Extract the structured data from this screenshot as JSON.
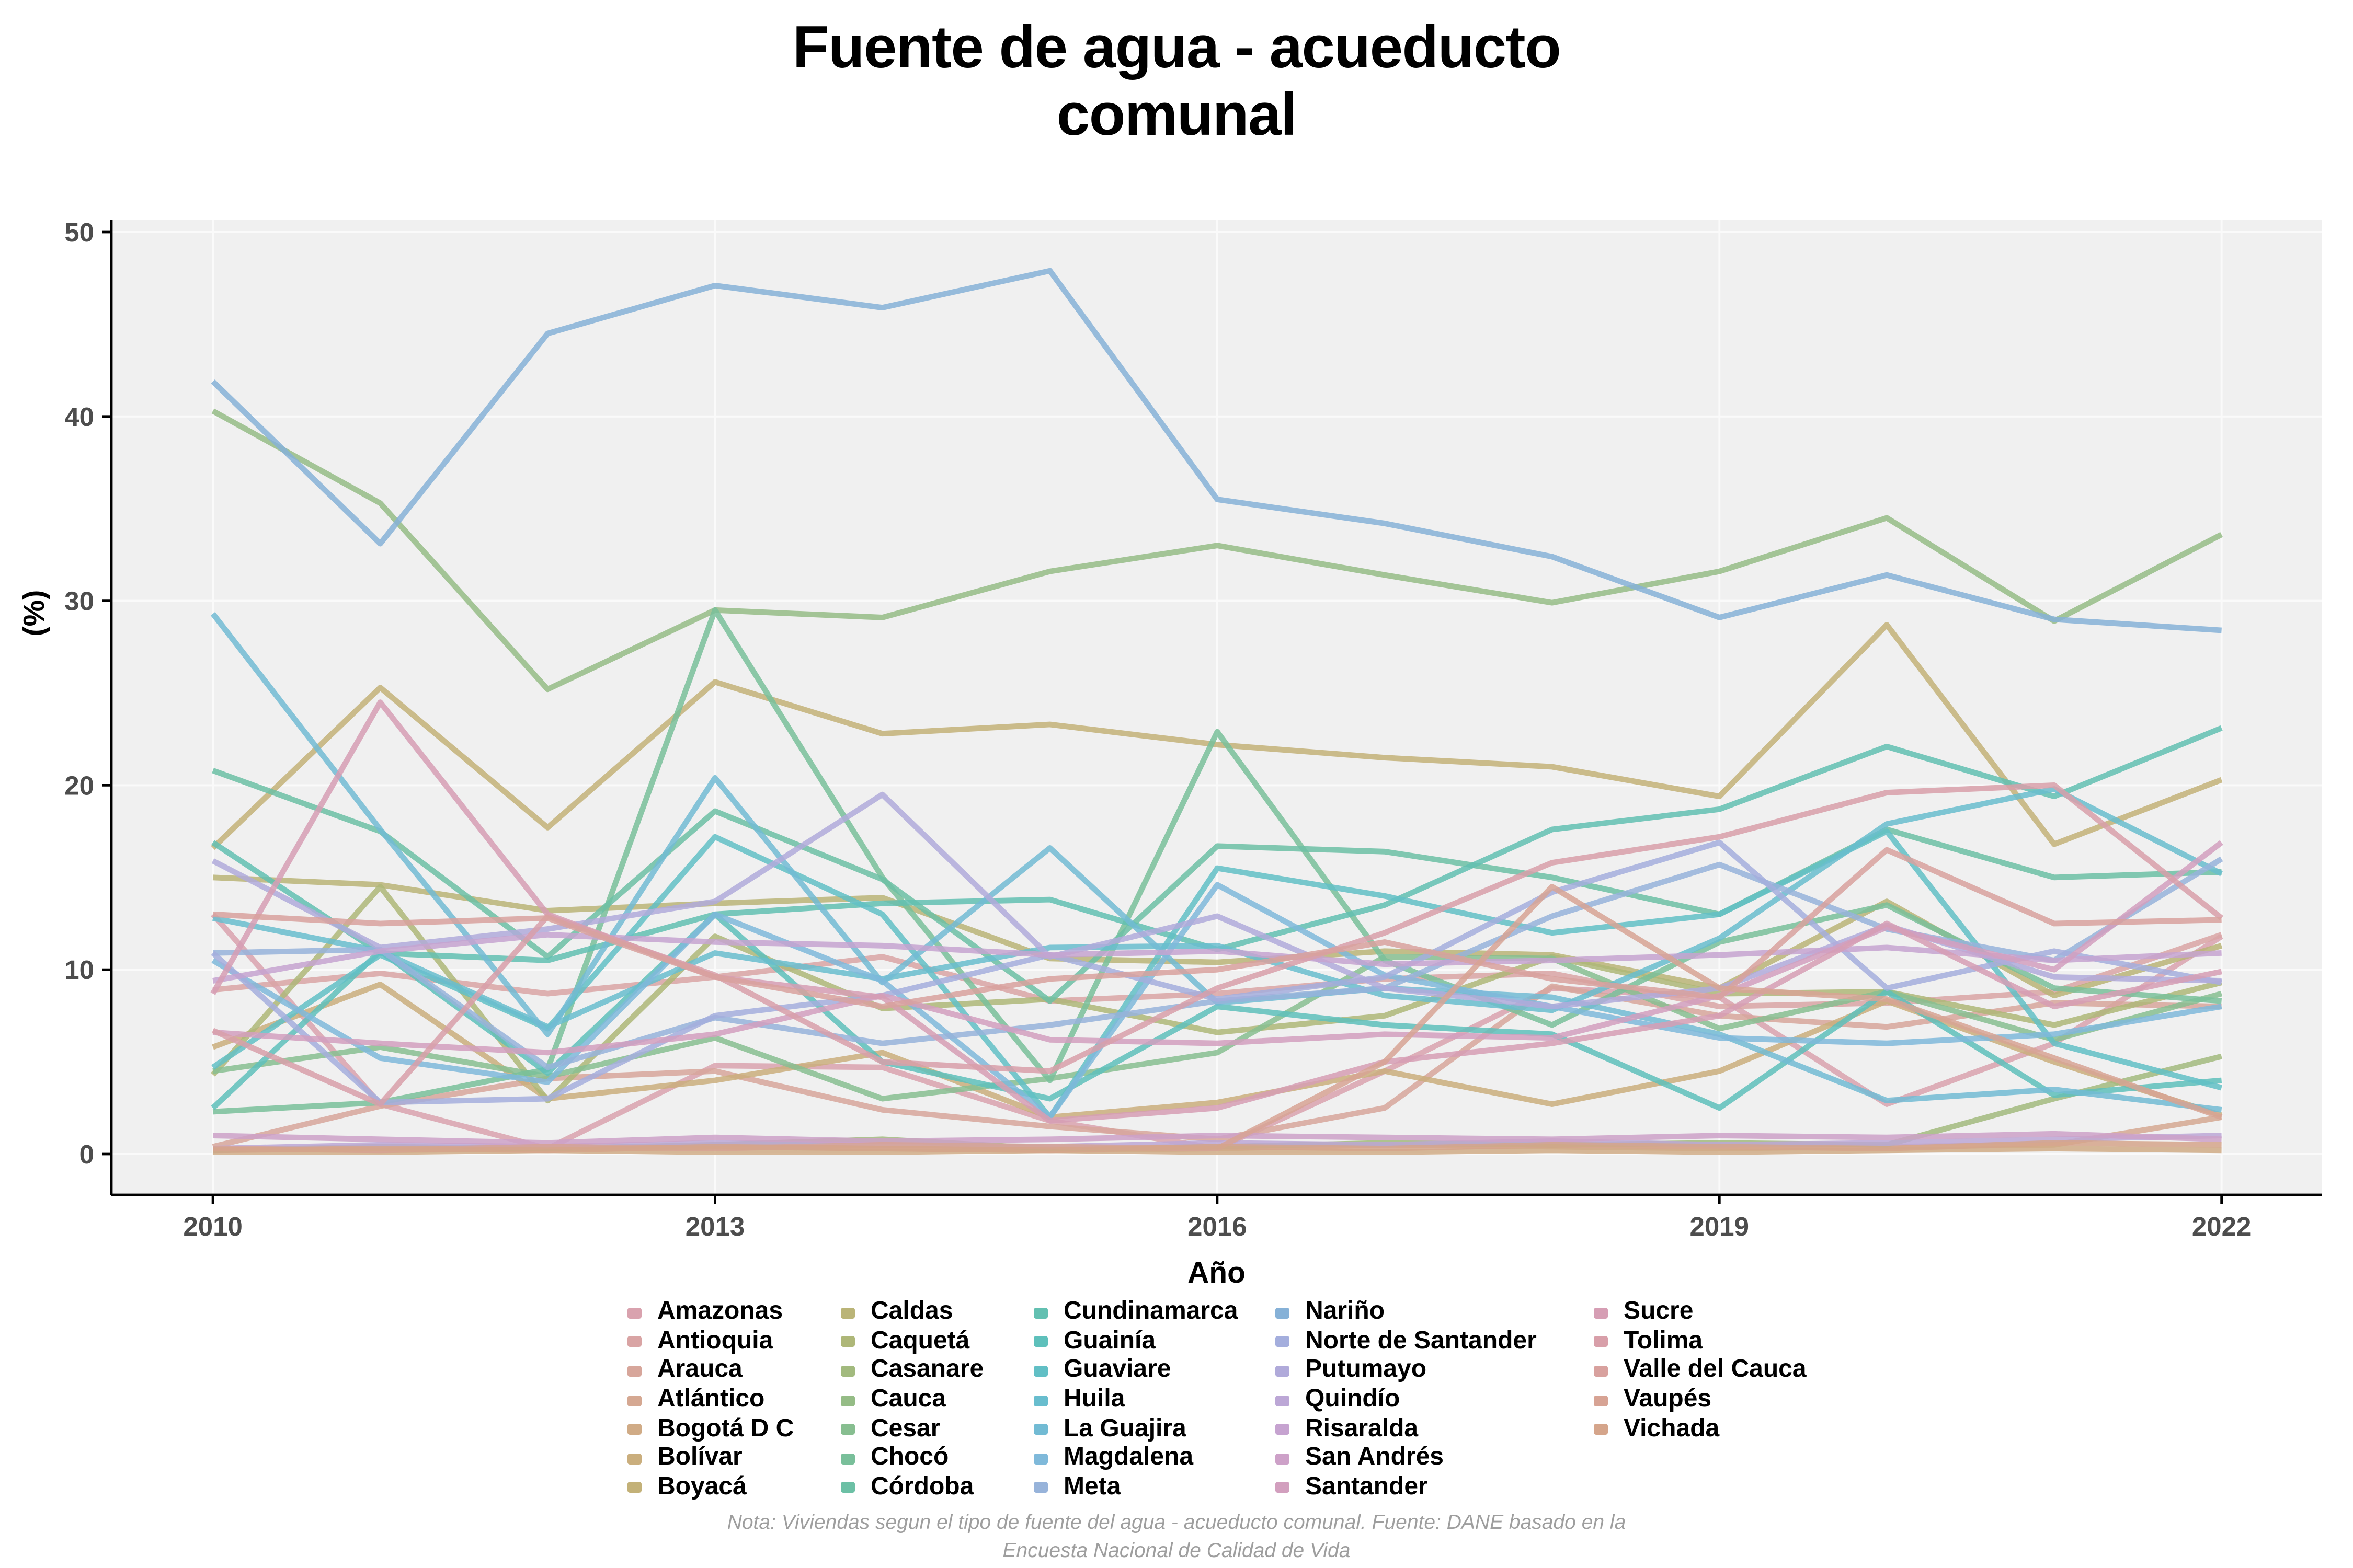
{
  "title": "Fuente de agua - acueducto comunal",
  "note": "Nota: Viviendas segun el tipo de fuente del agua - acueducto comunal. Fuente: DANE basado en la Encuesta Nacional de Calidad de Vida",
  "axes": {
    "x_label": "Año",
    "y_label": "(%)",
    "x_ticks": [
      2010,
      2013,
      2016,
      2019,
      2022
    ],
    "y_ticks": [
      0,
      10,
      20,
      30,
      40,
      50
    ]
  },
  "style_colors": {
    "panel_bg": "#f0f0f0",
    "gridline": "#fafafa",
    "axis_line": "#000000",
    "tick_label": "#4d4d4d",
    "note_text": "#9e9e9e"
  },
  "chart_data": {
    "type": "line",
    "title": "Fuente de agua - acueducto comunal",
    "xlabel": "Año",
    "ylabel": "(%)",
    "ylim": [
      0,
      50
    ],
    "xlim": [
      2010,
      2022
    ],
    "grid": "major horizontal and vertical, white on light gray panel",
    "legend_position": "bottom",
    "x": [
      2010,
      2011,
      2012,
      2013,
      2014,
      2015,
      2016,
      2017,
      2018,
      2019,
      2020,
      2021,
      2022
    ],
    "series": [
      {
        "name": "Amazonas",
        "color": "#d9a2ae",
        "values": [
          13.0,
          2.7,
          0.3,
          4.8,
          4.7,
          1.8,
          0.3,
          4.5,
          9.0,
          8.5,
          2.7,
          6.0,
          11.8
        ]
      },
      {
        "name": "Antioquia",
        "color": "#d9a4a4",
        "values": [
          8.9,
          9.8,
          8.7,
          9.6,
          10.7,
          8.3,
          8.7,
          9.5,
          9.8,
          8.0,
          8.2,
          8.8,
          11.9
        ]
      },
      {
        "name": "Arauca",
        "color": "#d7a69b",
        "values": [
          0.4,
          2.6,
          4.1,
          4.5,
          2.4,
          1.5,
          0.8,
          2.5,
          9.1,
          7.5,
          6.9,
          8.2,
          8.0
        ]
      },
      {
        "name": "Atlántico",
        "color": "#d5a892",
        "values": [
          0.3,
          0.2,
          0.3,
          0.4,
          0.3,
          0.2,
          0.3,
          0.5,
          0.4,
          0.3,
          0.4,
          0.5,
          2.0
        ]
      },
      {
        "name": "Bogotá D C",
        "color": "#d0ab86",
        "values": [
          0.1,
          0.1,
          0.2,
          0.1,
          0.1,
          0.2,
          0.1,
          0.1,
          0.2,
          0.1,
          0.2,
          0.3,
          0.2
        ]
      },
      {
        "name": "Bolívar",
        "color": "#caae7d",
        "values": [
          5.8,
          9.2,
          3.0,
          4.0,
          5.5,
          2.0,
          2.8,
          4.5,
          2.7,
          4.5,
          8.3,
          5.0,
          2.1
        ]
      },
      {
        "name": "Boyacá",
        "color": "#c3b178",
        "values": [
          16.6,
          25.3,
          17.7,
          25.6,
          22.8,
          23.3,
          22.2,
          21.5,
          21.0,
          19.4,
          28.7,
          16.8,
          20.3
        ]
      },
      {
        "name": "Caldas",
        "color": "#bab477",
        "values": [
          15.0,
          14.6,
          13.2,
          13.6,
          13.9,
          10.6,
          10.4,
          11.0,
          10.8,
          9.0,
          13.7,
          8.6,
          11.3
        ]
      },
      {
        "name": "Caquetá",
        "color": "#aeb778",
        "values": [
          4.3,
          14.5,
          2.9,
          11.8,
          7.9,
          8.4,
          6.6,
          7.5,
          10.7,
          8.7,
          8.8,
          7.0,
          9.3
        ]
      },
      {
        "name": "Casanare",
        "color": "#a2ba7e",
        "values": [
          0.2,
          0.4,
          0.3,
          0.5,
          0.8,
          0.3,
          0.4,
          0.6,
          0.5,
          0.6,
          0.5,
          3.0,
          5.3
        ]
      },
      {
        "name": "Cauca",
        "color": "#95bc86",
        "values": [
          40.3,
          35.3,
          25.2,
          29.5,
          29.1,
          31.6,
          33.0,
          31.4,
          29.9,
          31.6,
          34.5,
          28.9,
          33.6
        ]
      },
      {
        "name": "Cesar",
        "color": "#87be90",
        "values": [
          4.5,
          5.8,
          4.2,
          6.3,
          3.0,
          4.1,
          5.5,
          10.7,
          10.6,
          6.8,
          8.8,
          6.2,
          8.7
        ]
      },
      {
        "name": "Chocó",
        "color": "#79bf9a",
        "values": [
          2.3,
          2.8,
          4.6,
          29.5,
          15.0,
          4.0,
          22.9,
          10.5,
          7.0,
          11.5,
          13.5,
          9.0,
          8.3
        ]
      },
      {
        "name": "Córdoba",
        "color": "#6cc0a5",
        "values": [
          20.8,
          17.5,
          10.7,
          18.6,
          14.9,
          8.3,
          16.7,
          16.4,
          15.0,
          13.0,
          17.6,
          15.0,
          15.3
        ]
      },
      {
        "name": "Cundinamarca",
        "color": "#62c0b1",
        "values": [
          16.9,
          10.9,
          10.5,
          13.0,
          13.6,
          13.8,
          11.1,
          13.5,
          17.6,
          18.7,
          22.1,
          19.4,
          23.1
        ]
      },
      {
        "name": "Guainía",
        "color": "#5ec0bb",
        "values": [
          2.5,
          11.0,
          4.4,
          13.0,
          5.0,
          3.0,
          8.0,
          7.0,
          6.5,
          2.5,
          8.8,
          3.2,
          4.0
        ]
      },
      {
        "name": "Guaviare",
        "color": "#61bfc5",
        "values": [
          4.7,
          10.8,
          6.8,
          17.2,
          13.0,
          2.0,
          15.5,
          14.0,
          12.0,
          13.0,
          17.5,
          6.0,
          3.6
        ]
      },
      {
        "name": "Huila",
        "color": "#68bdce",
        "values": [
          12.8,
          11.0,
          6.9,
          10.9,
          9.5,
          11.2,
          11.3,
          8.6,
          7.8,
          11.7,
          17.9,
          19.8,
          15.2
        ]
      },
      {
        "name": "La Guajira",
        "color": "#72bbd4",
        "values": [
          29.3,
          17.6,
          6.5,
          20.4,
          9.3,
          16.6,
          8.2,
          9.0,
          8.5,
          6.5,
          2.9,
          3.5,
          2.4
        ]
      },
      {
        "name": "Magdalena",
        "color": "#7fb9da",
        "values": [
          10.5,
          5.2,
          3.9,
          13.0,
          9.4,
          2.0,
          14.6,
          9.7,
          8.0,
          6.3,
          6.0,
          6.5,
          8.0
        ]
      },
      {
        "name": "Meta",
        "color": "#97b3da",
        "values": [
          10.9,
          11.1,
          4.7,
          7.4,
          6.0,
          7.0,
          8.3,
          9.0,
          12.9,
          15.7,
          12.2,
          10.5,
          16.0
        ]
      },
      {
        "name": "Nariño",
        "color": "#86b1d7",
        "values": [
          41.9,
          33.1,
          44.5,
          47.1,
          45.9,
          47.9,
          35.5,
          34.2,
          32.4,
          29.1,
          31.4,
          29.0,
          28.4
        ]
      },
      {
        "name": "Norte de Santander",
        "color": "#a4aedd",
        "values": [
          10.9,
          2.8,
          3.0,
          7.5,
          8.6,
          10.8,
          8.4,
          9.6,
          14.2,
          16.9,
          9.0,
          11.0,
          9.3
        ]
      },
      {
        "name": "Putumayo",
        "color": "#b0aada",
        "values": [
          15.9,
          11.2,
          12.2,
          13.7,
          19.5,
          10.7,
          12.9,
          9.0,
          8.0,
          9.0,
          12.4,
          9.6,
          9.4
        ]
      },
      {
        "name": "Quindío",
        "color": "#bca7d6",
        "values": [
          0.3,
          0.5,
          0.4,
          0.6,
          0.5,
          0.4,
          0.6,
          0.5,
          0.7,
          0.5,
          0.6,
          0.8,
          1.0
        ]
      },
      {
        "name": "Risaralda",
        "color": "#c6a3d0",
        "values": [
          9.4,
          11.0,
          11.9,
          11.5,
          11.3,
          10.8,
          11.0,
          10.3,
          10.5,
          10.8,
          11.2,
          10.5,
          10.9
        ]
      },
      {
        "name": "San Andrés",
        "color": "#cda1c8",
        "values": [
          1.0,
          0.8,
          0.6,
          0.9,
          0.7,
          0.8,
          1.0,
          0.9,
          0.8,
          1.0,
          0.9,
          1.1,
          0.8
        ]
      },
      {
        "name": "Santander",
        "color": "#d29fbe",
        "values": [
          6.6,
          6.0,
          5.5,
          6.5,
          8.6,
          6.2,
          6.0,
          6.5,
          6.3,
          8.6,
          12.3,
          10.0,
          16.9
        ]
      },
      {
        "name": "Sucre",
        "color": "#d69eb4",
        "values": [
          8.7,
          24.5,
          13.0,
          9.6,
          8.5,
          1.8,
          2.5,
          5.0,
          6.0,
          7.5,
          12.5,
          8.0,
          9.9
        ]
      },
      {
        "name": "Tolima",
        "color": "#d89fa9",
        "values": [
          6.7,
          2.7,
          12.9,
          9.7,
          5.0,
          4.5,
          9.0,
          12.0,
          15.8,
          17.2,
          19.6,
          20.0,
          12.8
        ]
      },
      {
        "name": "Valle del Cauca",
        "color": "#d8a19e",
        "values": [
          13.0,
          12.5,
          12.8,
          9.6,
          8.0,
          9.5,
          10.0,
          11.5,
          9.5,
          8.5,
          16.5,
          12.5,
          12.7
        ]
      },
      {
        "name": "Vaupés",
        "color": "#d7a394",
        "values": [
          0.3,
          0.2,
          0.4,
          0.3,
          0.5,
          0.4,
          0.3,
          5.0,
          14.5,
          9.0,
          8.4,
          5.2,
          2.0
        ]
      },
      {
        "name": "Vichada",
        "color": "#d5a58b",
        "values": [
          0.2,
          0.3,
          0.2,
          0.4,
          0.3,
          0.2,
          0.4,
          0.3,
          0.5,
          0.4,
          0.3,
          0.6,
          0.5
        ]
      }
    ],
    "legend_columns": [
      7,
      7,
      7,
      7,
      5
    ]
  }
}
